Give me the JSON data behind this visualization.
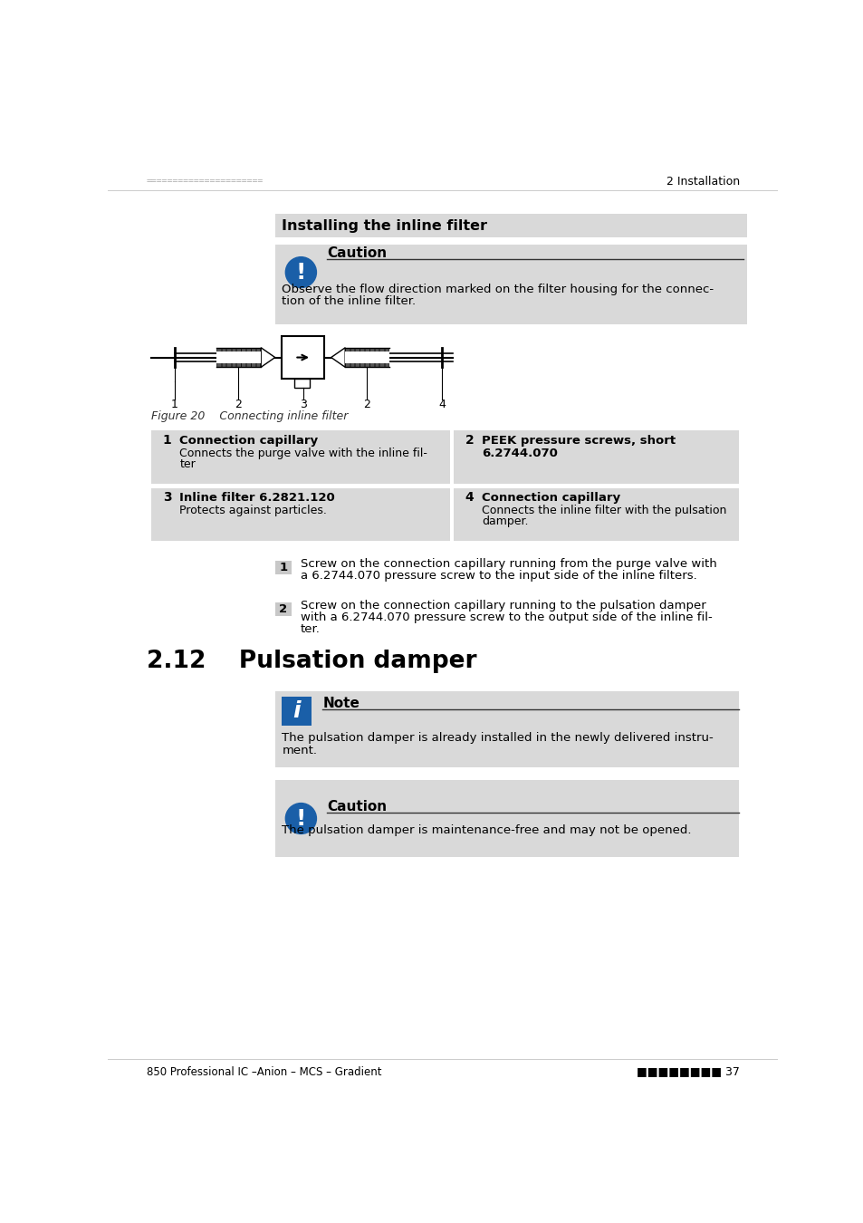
{
  "page_bg": "#ffffff",
  "header_dots": "======================",
  "header_right": "2 Installation",
  "section_title": "Installing the inline filter",
  "section_title_bg": "#d9d9d9",
  "caution_box_bg": "#d9d9d9",
  "caution_icon_color": "#1a5fa8",
  "caution_title": "Caution",
  "caution_text_1": "Observe the flow direction marked on the filter housing for the connec-",
  "caution_text_2": "tion of the inline filter.",
  "figure_caption": "Figure 20    Connecting inline filter",
  "table_bg": "#d9d9d9",
  "section2_title": "2.12    Pulsation damper",
  "note_box_bg": "#d9d9d9",
  "note_icon_color": "#1a5fa8",
  "note_title": "Note",
  "note_text_1": "The pulsation damper is already installed in the newly delivered instru-",
  "note_text_2": "ment.",
  "caution2_title": "Caution",
  "caution2_text": "The pulsation damper is maintenance-free and may not be opened.",
  "footer_left": "850 Professional IC –Anion – MCS – Gradient",
  "footer_dots": "■■■■■■■■ 37"
}
